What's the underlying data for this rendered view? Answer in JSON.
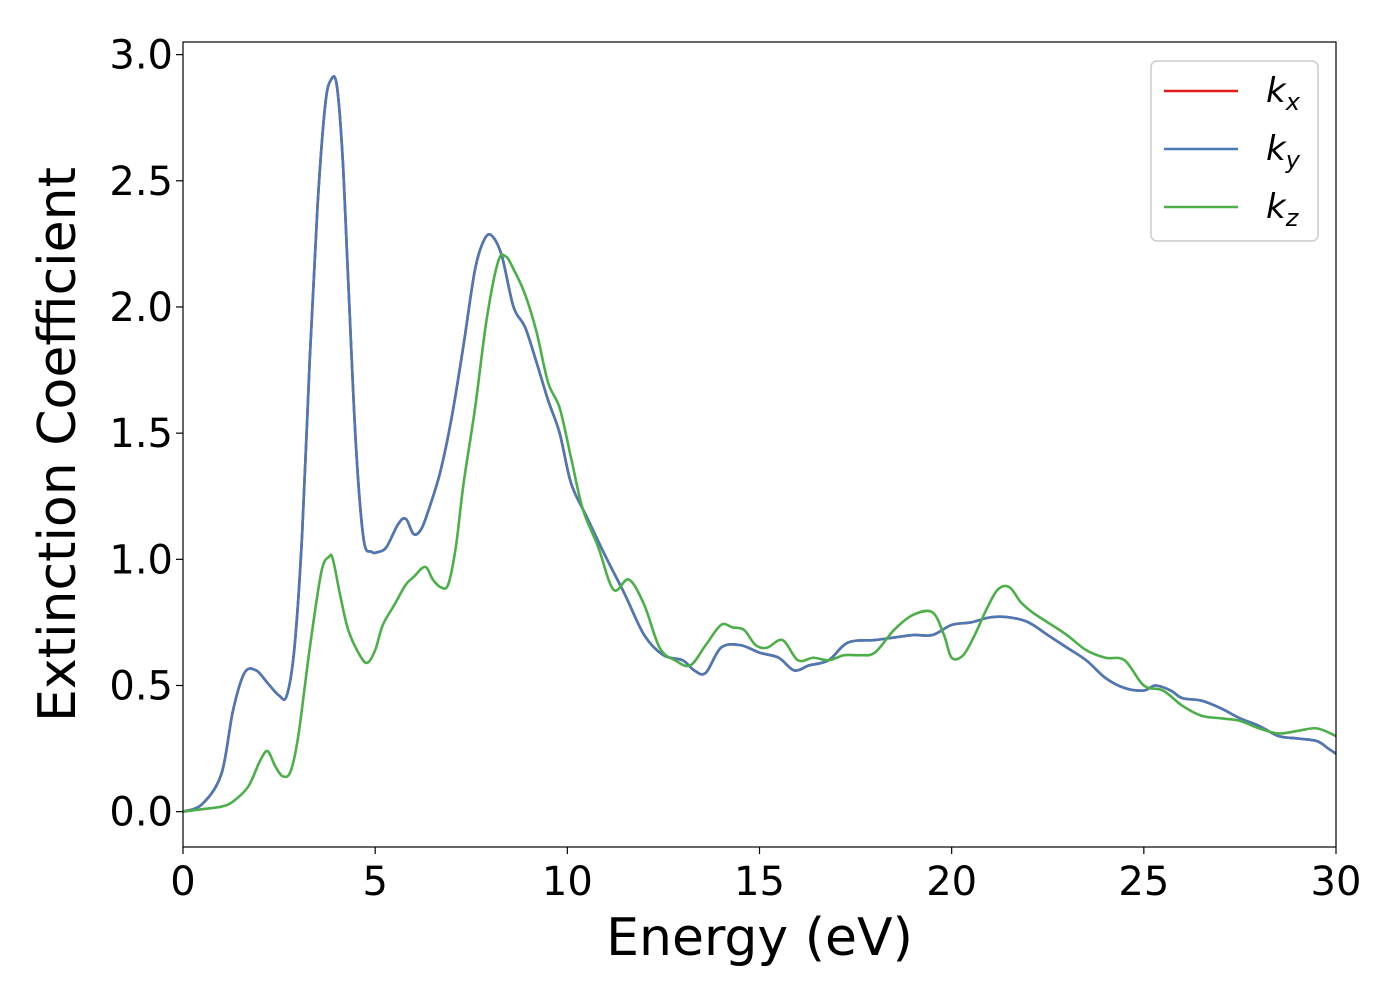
{
  "chart_data": {
    "type": "line",
    "title": "",
    "xlabel": "Energy (eV)",
    "ylabel": "Extinction Coefficient",
    "xlim": [
      0,
      30
    ],
    "ylim": [
      -0.14,
      3.05
    ],
    "xticks": [
      0,
      5,
      10,
      15,
      20,
      25,
      30
    ],
    "yticks": [
      0.0,
      0.5,
      1.0,
      1.5,
      2.0,
      2.5,
      3.0
    ],
    "xtick_labels": [
      "0",
      "5",
      "10",
      "15",
      "20",
      "25",
      "30"
    ],
    "ytick_labels": [
      "0.0",
      "0.5",
      "1.0",
      "1.5",
      "2.0",
      "2.5",
      "3.0"
    ],
    "grid": false,
    "legend_position": "top-right",
    "series": [
      {
        "name": "k_x",
        "legend_base": "k",
        "legend_sub": "x",
        "color": "#e41a1c",
        "x": [
          0,
          0.5,
          1.0,
          1.3,
          1.6,
          1.9,
          2.2,
          2.5,
          2.7,
          2.9,
          3.1,
          3.3,
          3.5,
          3.7,
          3.85,
          4.0,
          4.15,
          4.3,
          4.5,
          4.7,
          4.9,
          5.1,
          5.3,
          5.6,
          5.8,
          6.0,
          6.2,
          6.4,
          6.7,
          7.0,
          7.3,
          7.6,
          7.85,
          8.05,
          8.3,
          8.6,
          8.9,
          9.2,
          9.5,
          9.8,
          10.1,
          10.5,
          11.0,
          11.5,
          12.0,
          12.5,
          13.0,
          13.3,
          13.6,
          14.0,
          14.5,
          15.0,
          15.5,
          15.9,
          16.3,
          16.8,
          17.3,
          18.0,
          18.5,
          19.0,
          19.5,
          20.0,
          20.5,
          21.0,
          21.5,
          22.0,
          22.5,
          23.0,
          23.5,
          24.0,
          24.5,
          25.0,
          25.3,
          25.7,
          26.0,
          26.5,
          27.0,
          27.5,
          28.0,
          28.5,
          29.0,
          29.5,
          29.8,
          30.0
        ],
        "y": [
          0.0,
          0.03,
          0.15,
          0.4,
          0.55,
          0.56,
          0.51,
          0.46,
          0.46,
          0.65,
          1.1,
          1.8,
          2.4,
          2.8,
          2.9,
          2.88,
          2.6,
          2.1,
          1.45,
          1.08,
          1.03,
          1.03,
          1.05,
          1.14,
          1.16,
          1.1,
          1.12,
          1.2,
          1.35,
          1.57,
          1.85,
          2.15,
          2.27,
          2.28,
          2.2,
          2.0,
          1.92,
          1.78,
          1.63,
          1.5,
          1.3,
          1.17,
          1.01,
          0.86,
          0.7,
          0.62,
          0.6,
          0.56,
          0.55,
          0.65,
          0.66,
          0.63,
          0.61,
          0.56,
          0.58,
          0.6,
          0.67,
          0.68,
          0.69,
          0.7,
          0.7,
          0.74,
          0.75,
          0.77,
          0.77,
          0.75,
          0.7,
          0.65,
          0.6,
          0.53,
          0.49,
          0.48,
          0.5,
          0.48,
          0.45,
          0.44,
          0.41,
          0.37,
          0.34,
          0.3,
          0.29,
          0.28,
          0.25,
          0.23
        ]
      },
      {
        "name": "k_y",
        "legend_base": "k",
        "legend_sub": "y",
        "color": "#4a7ab5",
        "x": [
          0,
          0.5,
          1.0,
          1.3,
          1.6,
          1.9,
          2.2,
          2.5,
          2.7,
          2.9,
          3.1,
          3.3,
          3.5,
          3.7,
          3.85,
          4.0,
          4.15,
          4.3,
          4.5,
          4.7,
          4.9,
          5.1,
          5.3,
          5.6,
          5.8,
          6.0,
          6.2,
          6.4,
          6.7,
          7.0,
          7.3,
          7.6,
          7.85,
          8.05,
          8.3,
          8.6,
          8.9,
          9.2,
          9.5,
          9.8,
          10.1,
          10.5,
          11.0,
          11.5,
          12.0,
          12.5,
          13.0,
          13.3,
          13.6,
          14.0,
          14.5,
          15.0,
          15.5,
          15.9,
          16.3,
          16.8,
          17.3,
          18.0,
          18.5,
          19.0,
          19.5,
          20.0,
          20.5,
          21.0,
          21.5,
          22.0,
          22.5,
          23.0,
          23.5,
          24.0,
          24.5,
          25.0,
          25.3,
          25.7,
          26.0,
          26.5,
          27.0,
          27.5,
          28.0,
          28.5,
          29.0,
          29.5,
          29.8,
          30.0
        ],
        "y": [
          0.0,
          0.03,
          0.15,
          0.4,
          0.55,
          0.56,
          0.51,
          0.46,
          0.46,
          0.65,
          1.1,
          1.8,
          2.4,
          2.8,
          2.9,
          2.88,
          2.6,
          2.1,
          1.45,
          1.08,
          1.03,
          1.03,
          1.05,
          1.14,
          1.16,
          1.1,
          1.12,
          1.2,
          1.35,
          1.57,
          1.85,
          2.15,
          2.27,
          2.28,
          2.2,
          2.0,
          1.92,
          1.78,
          1.63,
          1.5,
          1.3,
          1.17,
          1.01,
          0.86,
          0.7,
          0.62,
          0.6,
          0.56,
          0.55,
          0.65,
          0.66,
          0.63,
          0.61,
          0.56,
          0.58,
          0.6,
          0.67,
          0.68,
          0.69,
          0.7,
          0.7,
          0.74,
          0.75,
          0.77,
          0.77,
          0.75,
          0.7,
          0.65,
          0.6,
          0.53,
          0.49,
          0.48,
          0.5,
          0.48,
          0.45,
          0.44,
          0.41,
          0.37,
          0.34,
          0.3,
          0.29,
          0.28,
          0.25,
          0.23
        ]
      },
      {
        "name": "k_z",
        "legend_base": "k",
        "legend_sub": "z",
        "color": "#4daf4a",
        "x": [
          0,
          0.5,
          1.0,
          1.3,
          1.7,
          2.0,
          2.2,
          2.4,
          2.6,
          2.8,
          3.0,
          3.3,
          3.6,
          3.8,
          3.9,
          4.1,
          4.3,
          4.6,
          4.8,
          5.0,
          5.2,
          5.5,
          5.8,
          6.0,
          6.3,
          6.5,
          6.7,
          6.9,
          7.1,
          7.3,
          7.6,
          7.9,
          8.2,
          8.4,
          8.6,
          8.9,
          9.2,
          9.5,
          9.8,
          10.1,
          10.4,
          10.8,
          11.2,
          11.6,
          12.0,
          12.4,
          12.8,
          13.2,
          13.6,
          14.0,
          14.3,
          14.6,
          14.9,
          15.2,
          15.6,
          16.0,
          16.4,
          16.8,
          17.2,
          17.6,
          18.0,
          18.5,
          19.0,
          19.5,
          19.8,
          20.0,
          20.3,
          20.6,
          20.9,
          21.2,
          21.5,
          21.8,
          22.1,
          22.5,
          23.0,
          23.5,
          24.0,
          24.5,
          25.0,
          25.5,
          26.0,
          26.5,
          27.0,
          27.5,
          28.0,
          28.5,
          29.0,
          29.5,
          30.0
        ],
        "y": [
          0.0,
          0.01,
          0.02,
          0.04,
          0.1,
          0.2,
          0.24,
          0.18,
          0.14,
          0.16,
          0.3,
          0.65,
          0.95,
          1.01,
          1.0,
          0.85,
          0.72,
          0.62,
          0.59,
          0.64,
          0.74,
          0.82,
          0.9,
          0.93,
          0.97,
          0.92,
          0.89,
          0.9,
          1.05,
          1.3,
          1.6,
          1.95,
          2.18,
          2.2,
          2.15,
          2.05,
          1.9,
          1.7,
          1.6,
          1.4,
          1.2,
          1.05,
          0.88,
          0.92,
          0.82,
          0.65,
          0.6,
          0.58,
          0.66,
          0.74,
          0.73,
          0.72,
          0.66,
          0.65,
          0.68,
          0.6,
          0.61,
          0.6,
          0.62,
          0.62,
          0.63,
          0.72,
          0.78,
          0.79,
          0.7,
          0.61,
          0.62,
          0.7,
          0.8,
          0.88,
          0.89,
          0.83,
          0.79,
          0.75,
          0.7,
          0.64,
          0.61,
          0.6,
          0.5,
          0.48,
          0.42,
          0.38,
          0.37,
          0.36,
          0.33,
          0.31,
          0.32,
          0.33,
          0.3
        ]
      }
    ]
  }
}
